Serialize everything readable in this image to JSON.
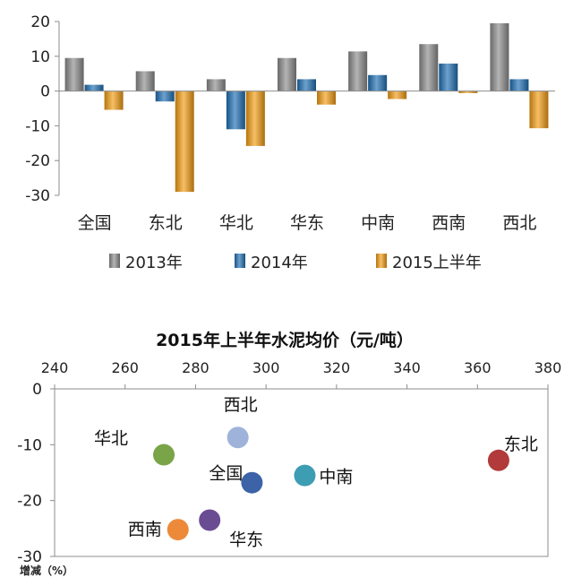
{
  "chart_data": [
    {
      "type": "bar",
      "categories": [
        "全国",
        "东北",
        "华北",
        "华东",
        "中南",
        "西南",
        "西北"
      ],
      "series": [
        {
          "name": "2013年",
          "values": [
            9.5,
            5.7,
            3.4,
            9.5,
            11.4,
            13.5,
            19.5
          ],
          "color": "#8c8c8c"
        },
        {
          "name": "2014年",
          "values": [
            1.8,
            -3.0,
            -11.0,
            3.4,
            4.6,
            7.9,
            3.4
          ],
          "color": "#1f6fb4"
        },
        {
          "name": "2015上半年",
          "values": [
            -5.4,
            -29.0,
            -15.8,
            -3.9,
            -2.3,
            -0.6,
            -10.7
          ],
          "color": "#f39c12"
        }
      ],
      "ylim": [
        -30,
        20
      ],
      "yticks": [
        -30,
        -20,
        -10,
        0,
        10,
        20
      ],
      "legend_position": "bottom"
    },
    {
      "type": "scatter",
      "title": "2015年上半年水泥均价（元/吨）",
      "ylabel": "增减（%）",
      "xlim": [
        240,
        380
      ],
      "ylim": [
        -30,
        0
      ],
      "xticks": [
        240,
        260,
        280,
        300,
        320,
        340,
        360,
        380
      ],
      "yticks": [
        0,
        -10,
        -20,
        -30
      ],
      "x_axis_position": "top",
      "points": [
        {
          "label": "西北",
          "x": 292,
          "y": -8.7,
          "color": "#9fb3da"
        },
        {
          "label": "华北",
          "x": 271,
          "y": -11.8,
          "color": "#79a447"
        },
        {
          "label": "东北",
          "x": 366,
          "y": -12.8,
          "color": "#b23a3a"
        },
        {
          "label": "中南",
          "x": 311,
          "y": -15.5,
          "color": "#3d9db3"
        },
        {
          "label": "全国",
          "x": 296,
          "y": -16.8,
          "color": "#3c63a8"
        },
        {
          "label": "华东",
          "x": 284,
          "y": -23.5,
          "color": "#6a4c93"
        },
        {
          "label": "西南",
          "x": 275,
          "y": -25.2,
          "color": "#ec8a3a"
        }
      ]
    }
  ]
}
